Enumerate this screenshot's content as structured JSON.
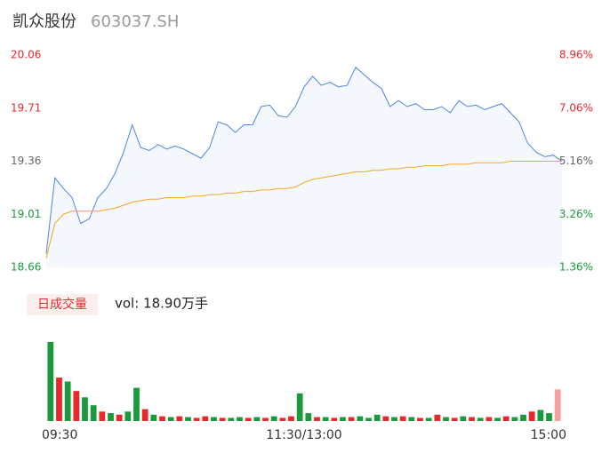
{
  "header": {
    "name": "凯众股份",
    "code": "603037.SH"
  },
  "chart_data": [
    {
      "type": "line",
      "xlim": [
        0,
        60
      ],
      "x": [
        0,
        1,
        2,
        3,
        4,
        5,
        6,
        7,
        8,
        9,
        10,
        11,
        12,
        13,
        14,
        15,
        16,
        17,
        18,
        19,
        20,
        21,
        22,
        23,
        24,
        25,
        26,
        27,
        28,
        29,
        30,
        31,
        32,
        33,
        34,
        35,
        36,
        37,
        38,
        39,
        40,
        41,
        42,
        43,
        44,
        45,
        46,
        47,
        48,
        49,
        50,
        51,
        52,
        53,
        54,
        55,
        56,
        57,
        58,
        59,
        60
      ],
      "ylim": [
        18.66,
        20.06
      ],
      "yticks": [
        20.06,
        19.71,
        19.36,
        19.01,
        18.66
      ],
      "ytick_colors": [
        "#e8282b",
        "#e8282b",
        "#666666",
        "#1a9a3c",
        "#1a9a3c"
      ],
      "y2lim": [
        1.36,
        8.96
      ],
      "y2ticks": [
        {
          "value": 8.96,
          "label": "8.96%"
        },
        {
          "value": 7.06,
          "label": "7.06%"
        },
        {
          "value": 5.16,
          "label": "5.16%"
        },
        {
          "value": 3.26,
          "label": "3.26%"
        },
        {
          "value": 1.36,
          "label": "1.36%"
        }
      ],
      "y2tick_colors": [
        "#e8282b",
        "#e8282b",
        "#666666",
        "#1a9a3c",
        "#1a9a3c"
      ],
      "series": [
        {
          "color": "#4a86e8",
          "fill": "#f4f7fc",
          "values": [
            18.75,
            19.25,
            19.18,
            19.12,
            18.95,
            18.98,
            19.12,
            19.18,
            19.28,
            19.42,
            19.6,
            19.45,
            19.43,
            19.47,
            19.44,
            19.46,
            19.44,
            19.41,
            19.38,
            19.45,
            19.62,
            19.6,
            19.55,
            19.6,
            19.6,
            19.72,
            19.73,
            19.66,
            19.65,
            19.72,
            19.85,
            19.92,
            19.86,
            19.88,
            19.85,
            19.86,
            19.98,
            19.93,
            19.88,
            19.84,
            19.72,
            19.76,
            19.72,
            19.74,
            19.7,
            19.7,
            19.72,
            19.68,
            19.76,
            19.72,
            19.73,
            19.7,
            19.72,
            19.74,
            19.68,
            19.62,
            19.48,
            19.42,
            19.39,
            19.4,
            19.36
          ]
        },
        {
          "color": "#f5a623",
          "values": [
            18.72,
            18.95,
            19.01,
            19.03,
            19.03,
            19.03,
            19.03,
            19.04,
            19.05,
            19.07,
            19.09,
            19.1,
            19.11,
            19.11,
            19.12,
            19.12,
            19.12,
            19.13,
            19.13,
            19.14,
            19.14,
            19.15,
            19.15,
            19.16,
            19.16,
            19.17,
            19.17,
            19.18,
            19.18,
            19.19,
            19.22,
            19.24,
            19.25,
            19.26,
            19.27,
            19.28,
            19.29,
            19.29,
            19.3,
            19.3,
            19.31,
            19.31,
            19.32,
            19.32,
            19.33,
            19.33,
            19.33,
            19.34,
            19.34,
            19.34,
            19.35,
            19.35,
            19.35,
            19.35,
            19.36,
            19.36,
            19.36,
            19.36,
            19.36,
            19.36,
            19.36
          ]
        }
      ]
    },
    {
      "type": "bar",
      "label": "日成交量",
      "annotation": "vol: 18.90万手",
      "xticks": [
        {
          "value": 0,
          "label": "09:30"
        },
        {
          "value": 30,
          "label": "11:30/13:00"
        },
        {
          "value": 60,
          "label": "15:00"
        }
      ],
      "xlim": [
        0,
        60
      ],
      "ylim": [
        0,
        100
      ],
      "values": [
        100,
        55,
        50,
        38,
        30,
        20,
        12,
        10,
        8,
        12,
        42,
        15,
        8,
        6,
        5,
        6,
        5,
        4,
        6,
        5,
        4,
        4,
        5,
        4,
        5,
        4,
        6,
        4,
        6,
        35,
        10,
        5,
        5,
        4,
        5,
        5,
        6,
        4,
        8,
        6,
        5,
        6,
        5,
        4,
        4,
        8,
        5,
        4,
        6,
        5,
        4,
        5,
        4,
        6,
        5,
        8,
        12,
        14,
        10,
        40
      ],
      "colors": [
        "#1a9a3c",
        "#e8282b",
        "#1a9a3c",
        "#e8282b",
        "#1a9a3c",
        "#1a9a3c",
        "#e8282b",
        "#1a9a3c",
        "#e8282b",
        "#1a9a3c",
        "#1a9a3c",
        "#e8282b",
        "#1a9a3c",
        "#e8282b",
        "#1a9a3c",
        "#e8282b",
        "#1a9a3c",
        "#e8282b",
        "#e8282b",
        "#1a9a3c",
        "#e8282b",
        "#1a9a3c",
        "#1a9a3c",
        "#e8282b",
        "#1a9a3c",
        "#e8282b",
        "#1a9a3c",
        "#e8282b",
        "#e8282b",
        "#1a9a3c",
        "#1a9a3c",
        "#e8282b",
        "#1a9a3c",
        "#e8282b",
        "#1a9a3c",
        "#e8282b",
        "#1a9a3c",
        "#1a9a3c",
        "#1a9a3c",
        "#e8282b",
        "#1a9a3c",
        "#e8282b",
        "#1a9a3c",
        "#e8282b",
        "#1a9a3c",
        "#e8282b",
        "#1a9a3c",
        "#e8282b",
        "#1a9a3c",
        "#e8282b",
        "#1a9a3c",
        "#e8282b",
        "#1a9a3c",
        "#e8282b",
        "#1a9a3c",
        "#1a9a3c",
        "#e8282b",
        "#1a9a3c",
        "#1a9a3c",
        "#f4a0a0"
      ]
    }
  ]
}
